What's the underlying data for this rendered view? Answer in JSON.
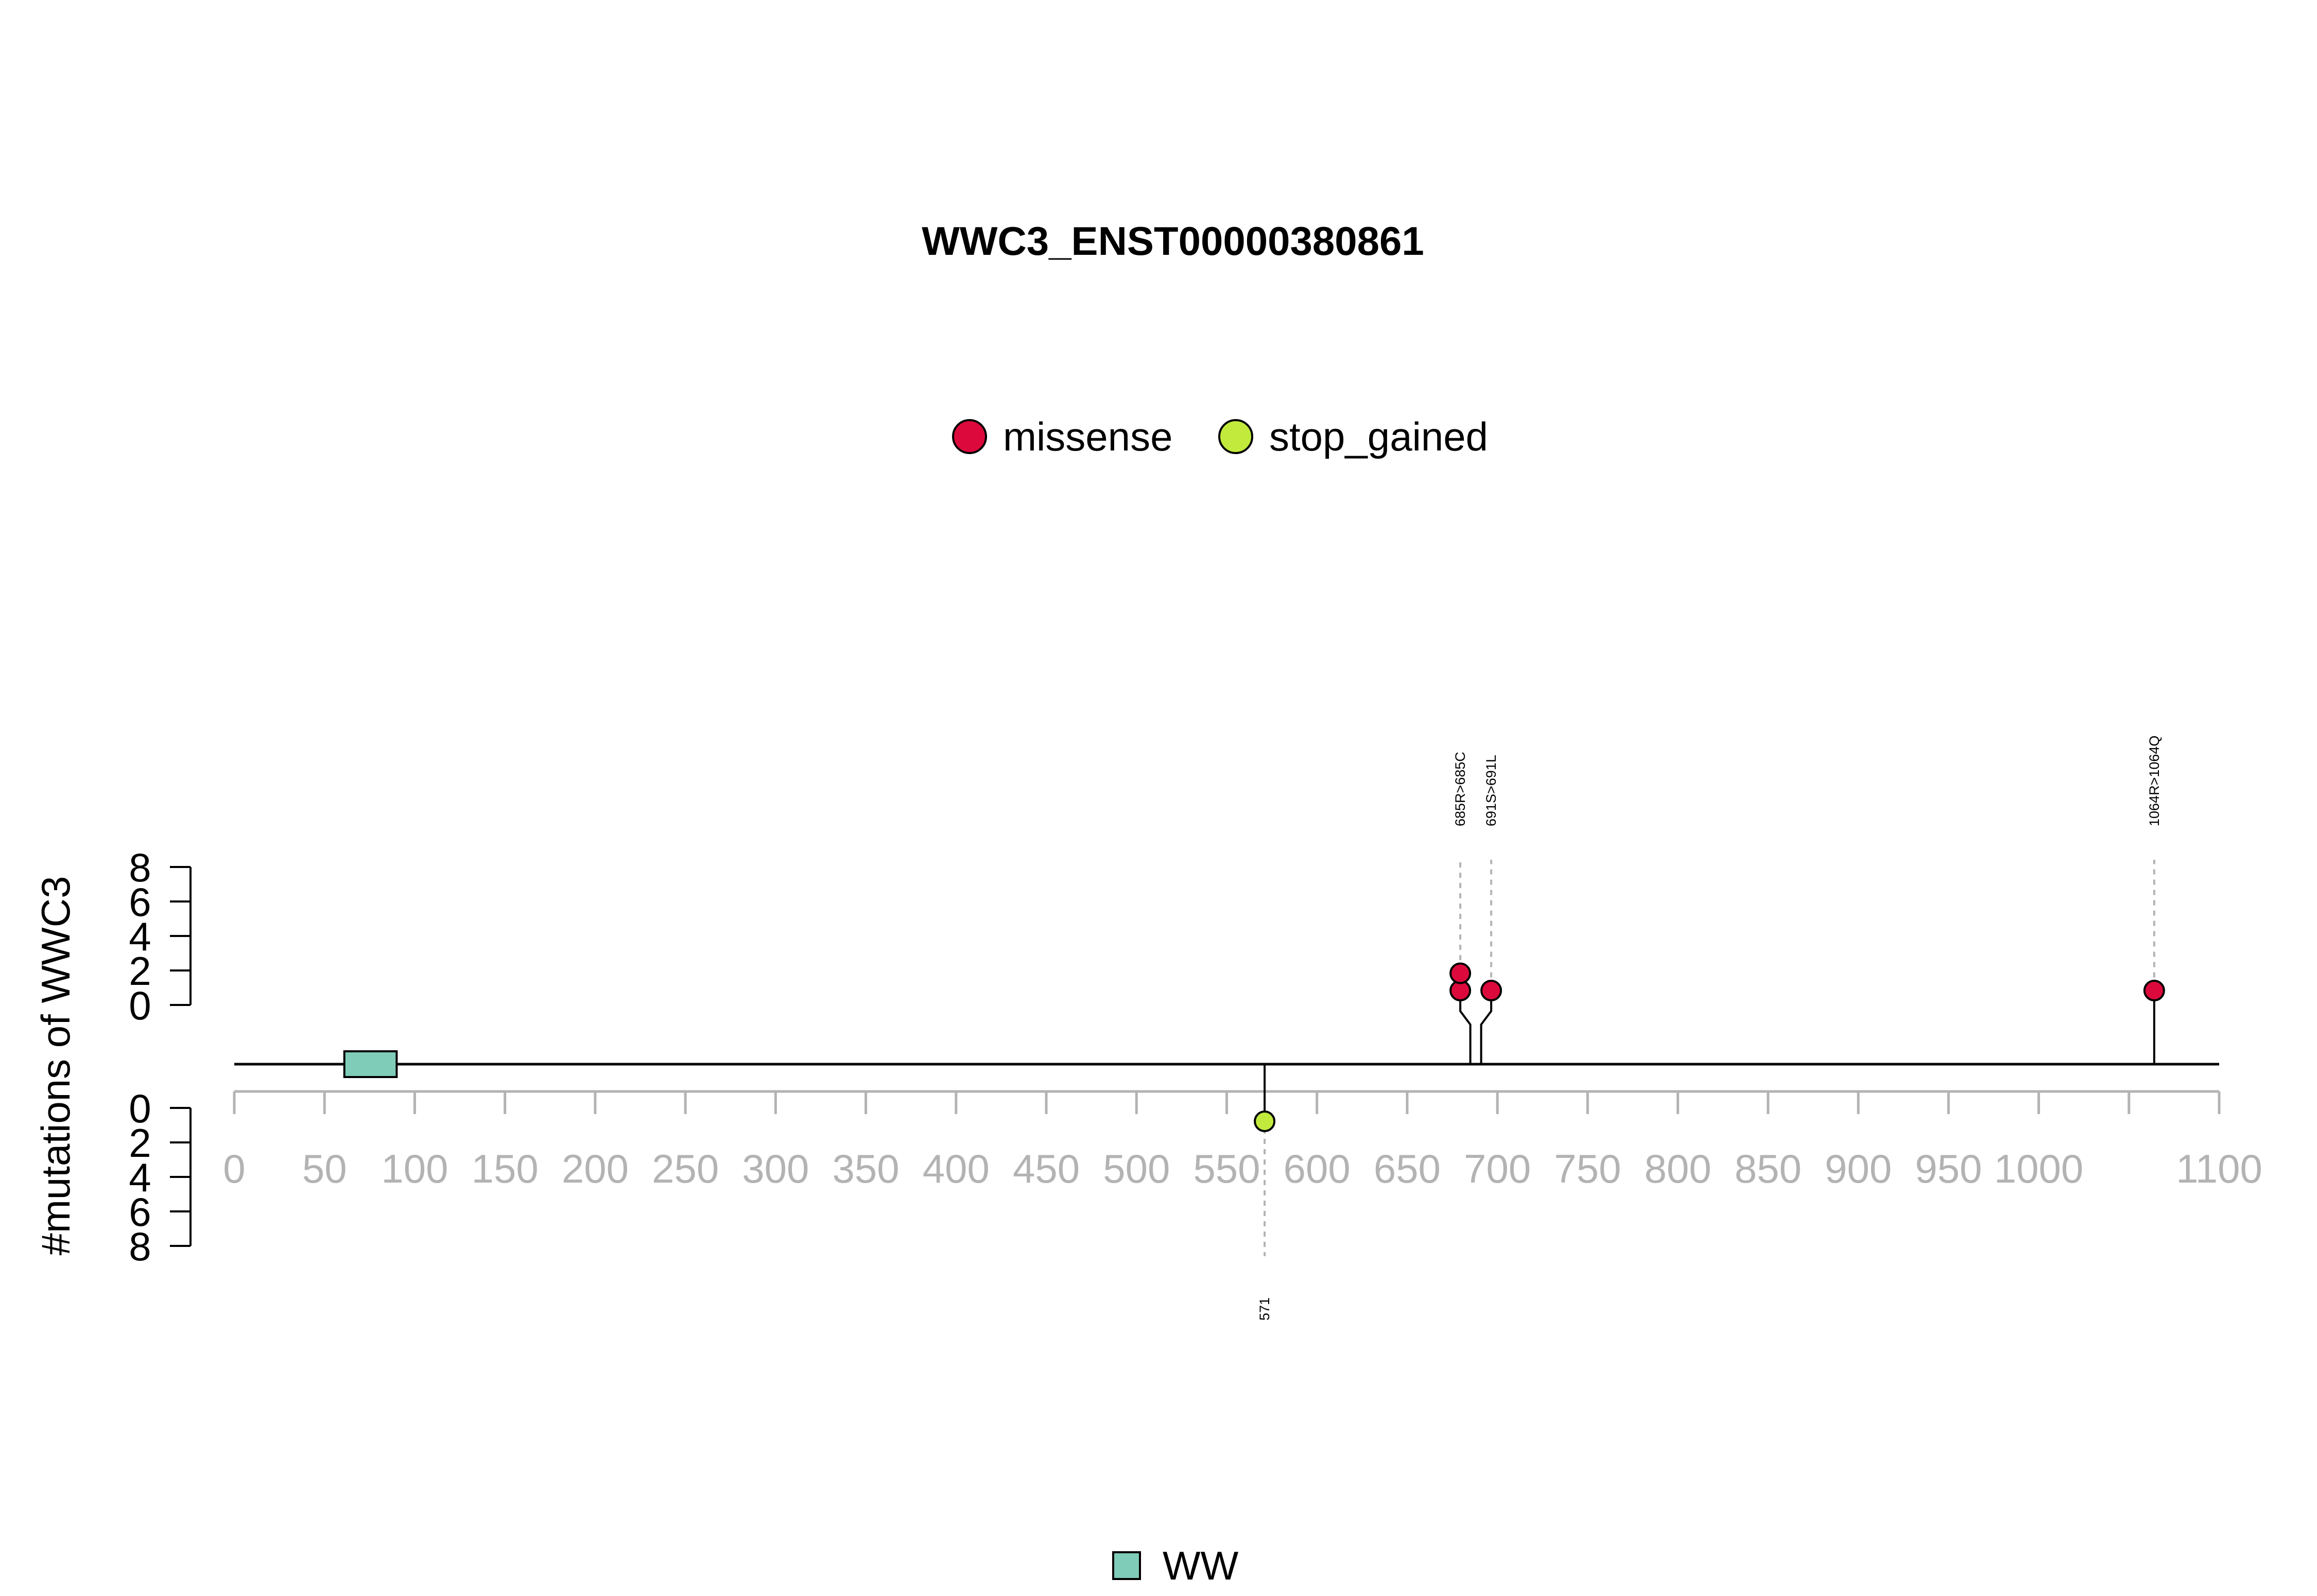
{
  "chart_data": {
    "type": "lollipop",
    "title": "WWC3_ENST00000380861",
    "ylabel": "#mutations of WWC3",
    "xlim": [
      0,
      1100
    ],
    "x_ticks": [
      0,
      50,
      100,
      150,
      200,
      250,
      300,
      350,
      400,
      450,
      500,
      550,
      600,
      650,
      700,
      750,
      800,
      850,
      900,
      950,
      1000,
      1100
    ],
    "y_ticks_top": [
      0,
      2,
      4,
      6,
      8
    ],
    "y_ticks_bottom": [
      0,
      2,
      4,
      6,
      8
    ],
    "legend_top": [
      {
        "name": "missense",
        "color": "#dc0a3c"
      },
      {
        "name": "stop_gained",
        "color": "#c1ea3c"
      }
    ],
    "legend_bottom": [
      {
        "name": "WW",
        "color": "#7fccb9"
      }
    ],
    "domains": [
      {
        "name": "WW",
        "start": 61,
        "end": 90,
        "color": "#7fccb9"
      }
    ],
    "mutations": [
      {
        "position": 685,
        "label": "685R>685C",
        "type": "missense",
        "count": 2,
        "track": "top"
      },
      {
        "position": 691,
        "label": "691S>691L",
        "type": "missense",
        "count": 1,
        "track": "top"
      },
      {
        "position": 1064,
        "label": "1064R>1064Q",
        "type": "missense",
        "count": 1,
        "track": "top"
      },
      {
        "position": 571,
        "label": "571",
        "type": "stop_gained",
        "count": 1,
        "track": "bottom"
      }
    ]
  }
}
